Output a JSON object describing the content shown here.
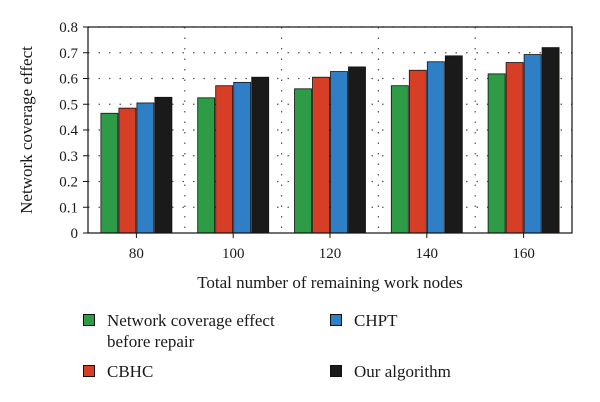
{
  "chart_data": {
    "type": "bar",
    "title": "",
    "xlabel": "Total number of remaining work nodes",
    "ylabel": "Network coverage effect",
    "categories": [
      "80",
      "100",
      "120",
      "140",
      "160"
    ],
    "ylim": [
      0,
      0.8
    ],
    "yticks": [
      "0",
      "0.1",
      "0.2",
      "0.3",
      "0.4",
      "0.5",
      "0.6",
      "0.7",
      "0.8"
    ],
    "grid": "dotted",
    "legend_position": "bottom",
    "series": [
      {
        "name": "Network coverage effect before repair",
        "color": "#2e9b47",
        "values": [
          0.465,
          0.525,
          0.56,
          0.572,
          0.618
        ]
      },
      {
        "name": "CBHC",
        "color": "#d63f26",
        "values": [
          0.485,
          0.572,
          0.605,
          0.632,
          0.662
        ]
      },
      {
        "name": "CHPT",
        "color": "#2f7fc6",
        "values": [
          0.505,
          0.585,
          0.627,
          0.665,
          0.693
        ]
      },
      {
        "name": "Our algorithm",
        "color": "#1a1a1a",
        "values": [
          0.527,
          0.605,
          0.645,
          0.688,
          0.72
        ]
      }
    ]
  },
  "legend": {
    "line1_label": "Network coverage effect",
    "line2_label": "before repair"
  }
}
